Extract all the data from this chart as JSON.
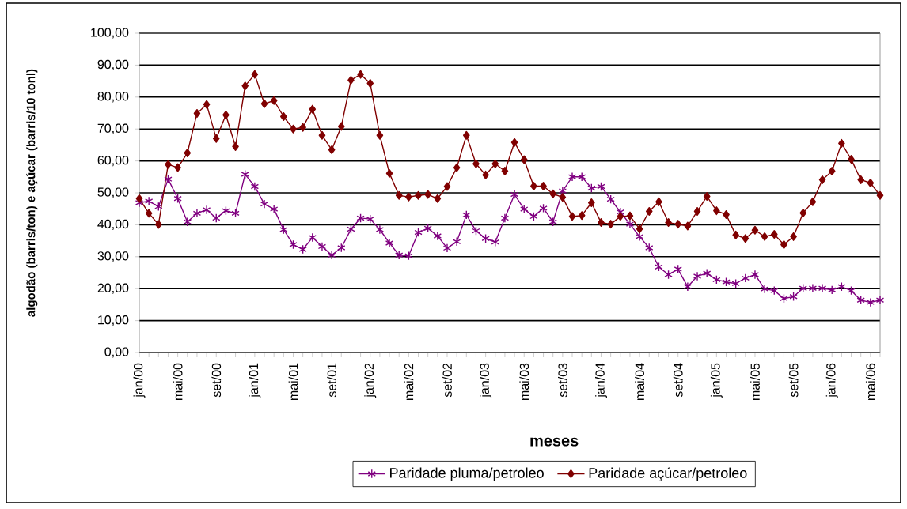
{
  "chart_data": {
    "type": "line",
    "xlabel": "meses",
    "ylabel": "algodão (barris/ton) e açúcar (barris/10 tonl)",
    "categories": [
      "jan/00",
      null,
      null,
      null,
      "mai/00",
      null,
      null,
      null,
      "set/00",
      null,
      null,
      null,
      "jan/01",
      null,
      null,
      null,
      "mai/01",
      null,
      null,
      null,
      "set/01",
      null,
      null,
      null,
      "jan/02",
      null,
      null,
      null,
      "mai/02",
      null,
      null,
      null,
      "set/02",
      null,
      null,
      null,
      "jan/03",
      null,
      null,
      null,
      "mai/03",
      null,
      null,
      null,
      "set/03",
      null,
      null,
      null,
      "jan/04",
      null,
      null,
      null,
      "mai/04",
      null,
      null,
      null,
      "set/04",
      null,
      null,
      null,
      "jan/05",
      null,
      null,
      null,
      "mai/05",
      null,
      null,
      null,
      "set/05",
      null,
      null,
      null,
      "jan/06",
      null,
      null,
      null,
      "mai/06",
      null
    ],
    "series": [
      {
        "name": "Paridade pluma/petroleo",
        "color": "#800080",
        "marker": "cross",
        "values": [
          46.9,
          47.4,
          45.7,
          54.3,
          48.2,
          40.9,
          43.6,
          44.7,
          42.1,
          44.4,
          43.6,
          55.8,
          52,
          46.5,
          44.9,
          38.5,
          33.8,
          32.3,
          36,
          33.2,
          30.5,
          32.8,
          38.6,
          42.1,
          41.8,
          38.5,
          34.3,
          30.5,
          30.3,
          37.6,
          38.9,
          36.5,
          32.7,
          34.7,
          43.1,
          38.1,
          35.7,
          34.6,
          42.1,
          49.5,
          44.9,
          42.6,
          45.2,
          40.9,
          50.6,
          55,
          55,
          51.5,
          52,
          48,
          44,
          40.2,
          36.3,
          32.8,
          26.8,
          24.4,
          26.1,
          20.6,
          23.9,
          24.8,
          22.8,
          22.1,
          21.6,
          23.3,
          24.4,
          19.9,
          19.4,
          16.9,
          17.5,
          20.1,
          20.1,
          20.1,
          19.6,
          20.6,
          19.4,
          16.4,
          15.7,
          16.4
        ]
      },
      {
        "name": "Paridade açúcar/petroleo",
        "color": "#800000",
        "marker": "diamond",
        "values": [
          48.2,
          43.6,
          40.1,
          58.9,
          57.9,
          62.5,
          74.9,
          77.7,
          67,
          74.4,
          64.5,
          83.5,
          87.1,
          77.9,
          78.9,
          73.9,
          70,
          70.5,
          76.2,
          68,
          63.5,
          70.8,
          85.3,
          87.1,
          84.3,
          68,
          56.1,
          49.2,
          48.7,
          49.2,
          49.5,
          48.2,
          52,
          57.9,
          68,
          59.1,
          55.6,
          59.1,
          56.8,
          65.8,
          60.4,
          52.1,
          52.1,
          49.7,
          48.6,
          42.6,
          42.9,
          46.9,
          40.7,
          40.2,
          42.6,
          42.8,
          38.7,
          44.2,
          47.2,
          40.7,
          40.2,
          39.6,
          44.2,
          48.9,
          44.4,
          43.2,
          36.8,
          35.7,
          38.3,
          36.3,
          37,
          33.8,
          36.3,
          43.7,
          47.2,
          54.1,
          56.8,
          65.5,
          60.5,
          54.1,
          53.1,
          49.2
        ]
      }
    ],
    "ylim": [
      0,
      100
    ],
    "yticks": [
      {
        "value": 0,
        "label": "0,00"
      },
      {
        "value": 10,
        "label": "10,00"
      },
      {
        "value": 20,
        "label": "20,00"
      },
      {
        "value": 30,
        "label": "30,00"
      },
      {
        "value": 40,
        "label": "40,00"
      },
      {
        "value": 50,
        "label": "50,00"
      },
      {
        "value": 60,
        "label": "60,00"
      },
      {
        "value": 70,
        "label": "70,00"
      },
      {
        "value": 80,
        "label": "80,00"
      },
      {
        "value": 90,
        "label": "90,00"
      },
      {
        "value": 100,
        "label": "100,00"
      }
    ],
    "grid": "y",
    "legend": "bottom"
  }
}
